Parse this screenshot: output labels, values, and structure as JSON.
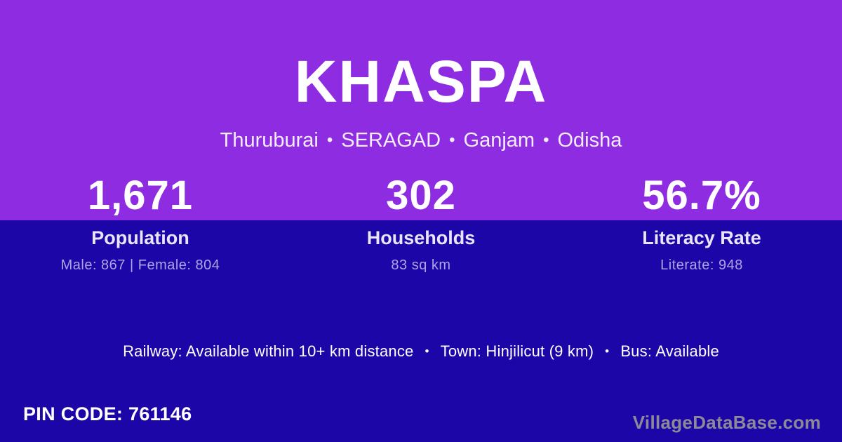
{
  "card": {
    "title": "KHASPA",
    "subtitle": {
      "separator": "•",
      "parts": [
        "Thuruburai",
        "SERAGAD",
        "Ganjam",
        "Odisha"
      ]
    }
  },
  "stats": [
    {
      "value": "1,671",
      "label": "Population",
      "detail": "Male: 867 | Female: 804"
    },
    {
      "value": "302",
      "label": "Households",
      "detail": "83 sq km"
    },
    {
      "value": "56.7%",
      "label": "Literacy Rate",
      "detail": "Literate: 948"
    }
  ],
  "transport": {
    "separator": "•",
    "items": [
      "Railway: Available within 10+ km distance",
      "Town: Hinjilicut (9 km)",
      "Bus: Available"
    ]
  },
  "footer": {
    "pin_code": "PIN CODE: 761146",
    "watermark": "VillageDataBase.com"
  },
  "colors": {
    "top_background": "#8e2ce2",
    "bottom_background": "#1c06a8",
    "heading_text": "#ffffff",
    "subtitle_text": "#f3ecfb",
    "stat_label_text": "#eae4f8",
    "stat_detail_text": "#aea4e2",
    "watermark_text": "#8b8a96"
  }
}
